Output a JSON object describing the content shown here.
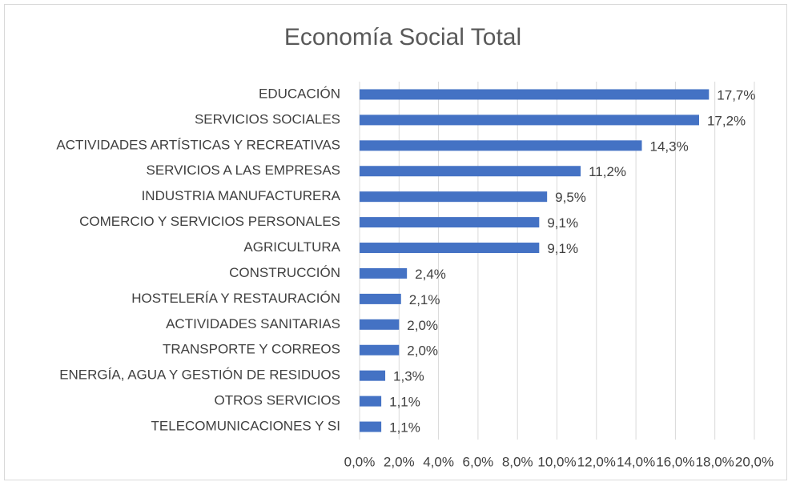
{
  "chart_data": {
    "type": "bar",
    "orientation": "horizontal",
    "title": "Economía Social Total",
    "categories": [
      "EDUCACIÓN",
      "SERVICIOS SOCIALES",
      "ACTIVIDADES ARTÍSTICAS Y RECREATIVAS",
      "SERVICIOS A LAS EMPRESAS",
      "INDUSTRIA MANUFACTURERA",
      "COMERCIO Y SERVICIOS PERSONALES",
      "AGRICULTURA",
      "CONSTRUCCIÓN",
      "HOSTELERÍA Y RESTAURACIÓN",
      "ACTIVIDADES SANITARIAS",
      "TRANSPORTE Y CORREOS",
      "ENERGÍA, AGUA Y GESTIÓN DE RESIDUOS",
      "OTROS SERVICIOS",
      "TELECOMUNICACIONES Y SI"
    ],
    "values": [
      17.7,
      17.2,
      14.3,
      11.2,
      9.5,
      9.1,
      9.1,
      2.4,
      2.1,
      2.0,
      2.0,
      1.3,
      1.1,
      1.1
    ],
    "value_labels": [
      "17,7%",
      "17,2%",
      "14,3%",
      "11,2%",
      "9,5%",
      "9,1%",
      "9,1%",
      "2,4%",
      "2,1%",
      "2,0%",
      "2,0%",
      "1,3%",
      "1,1%",
      "1,1%"
    ],
    "color": "#4472c4",
    "xlim": [
      0,
      20
    ],
    "xticks": [
      {
        "value": 0,
        "label": "0,0%"
      },
      {
        "value": 2,
        "label": "2,0%"
      },
      {
        "value": 4,
        "label": "4,0%"
      },
      {
        "value": 6,
        "label": "6,0%"
      },
      {
        "value": 8,
        "label": "8,0%"
      },
      {
        "value": 10,
        "label": "10,0%"
      },
      {
        "value": 12,
        "label": "12,0%"
      },
      {
        "value": 14,
        "label": "14,0%"
      },
      {
        "value": 16,
        "label": "16,0%"
      },
      {
        "value": 18,
        "label": "18,0%"
      },
      {
        "value": 20,
        "label": "20,0%"
      }
    ],
    "grid": true
  }
}
